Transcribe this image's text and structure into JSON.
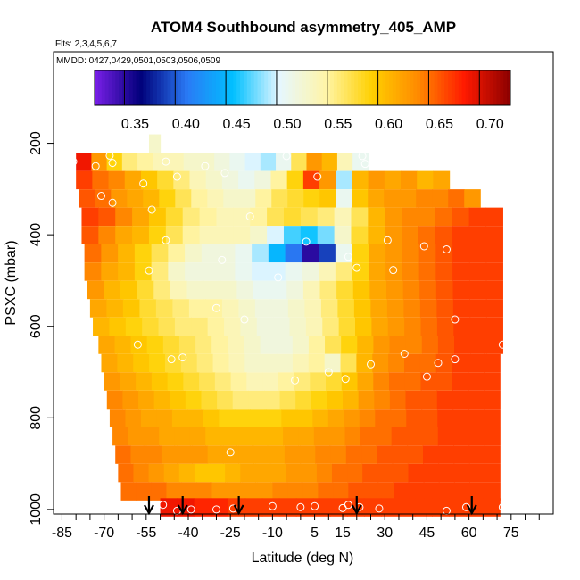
{
  "chart_data": {
    "type": "heatmap",
    "title": "ATOM4 Southbound asymmetry_405_AMP",
    "subtitle": "Flts: 2,3,4,5,6,7",
    "note": "MMDD: 0427,0429,0501,0503,0506,0509",
    "xlabel": "Latitude (deg N)",
    "ylabel": "PSXC (mbar)",
    "xlim": [
      -88,
      90
    ],
    "ylim": [
      1010,
      0
    ],
    "x_ticks": [
      -85,
      -70,
      -55,
      -40,
      -25,
      -10,
      5,
      15,
      30,
      45,
      60,
      75
    ],
    "x_tick_labels": [
      "-85",
      "-70",
      "-55",
      "-40",
      "-25",
      "-10",
      "5",
      "15",
      "30",
      "45",
      "60",
      "75"
    ],
    "y_ticks": [
      200,
      400,
      600,
      800,
      1000
    ],
    "y_tick_labels": [
      "200",
      "400",
      "600",
      "800",
      "1000"
    ],
    "colorbar": {
      "min": 0.31,
      "max": 0.72,
      "ticks": [
        0.35,
        0.4,
        0.45,
        0.5,
        0.55,
        0.6,
        0.65,
        0.7
      ],
      "tick_labels": [
        "0.35",
        "0.40",
        "0.45",
        "0.50",
        "0.55",
        "0.60",
        "0.65",
        "0.70"
      ],
      "colors": [
        "#7a1fe8",
        "#00007a",
        "#2a7af5",
        "#00c0ff",
        "#e6f7ff",
        "#fff5a8",
        "#ffd000",
        "#ff8a00",
        "#ff1a00",
        "#8b0000"
      ]
    },
    "profile_latitudes": [
      -54,
      -42,
      -22,
      20,
      61
    ],
    "bands": [
      {
        "p": 200,
        "x0": -54,
        "x1": -50,
        "values": [
          0.52,
          0.52
        ]
      },
      {
        "p": 240,
        "x0": -80,
        "x1": 24,
        "values": [
          0.68,
          0.62,
          0.58,
          0.55,
          0.54,
          0.53,
          0.53,
          0.52,
          0.52,
          0.51,
          0.5,
          0.49,
          0.48,
          0.5,
          0.56,
          0.62,
          0.6,
          0.53,
          0.5
        ]
      },
      {
        "p": 280,
        "x0": -80,
        "x1": 53,
        "values": [
          0.66,
          0.64,
          0.63,
          0.61,
          0.59,
          0.57,
          0.55,
          0.53,
          0.52,
          0.51,
          0.5,
          0.51,
          0.54,
          0.58,
          0.66,
          0.62,
          0.48,
          0.6,
          0.62,
          0.61,
          0.62,
          0.6,
          0.61
        ]
      },
      {
        "p": 320,
        "x0": -79,
        "x1": 64,
        "values": [
          0.65,
          0.64,
          0.62,
          0.61,
          0.6,
          0.58,
          0.56,
          0.54,
          0.53,
          0.52,
          0.52,
          0.54,
          0.56,
          0.57,
          0.58,
          0.59,
          0.5,
          0.59,
          0.61,
          0.62,
          0.62,
          0.63,
          0.63,
          0.64,
          0.62
        ]
      },
      {
        "p": 360,
        "x0": -78,
        "x1": 72,
        "values": [
          0.66,
          0.65,
          0.63,
          0.61,
          0.59,
          0.57,
          0.55,
          0.54,
          0.53,
          0.53,
          0.54,
          0.56,
          0.57,
          0.56,
          0.55,
          0.53,
          0.56,
          0.6,
          0.62,
          0.63,
          0.63,
          0.64,
          0.65,
          0.66,
          0.66
        ]
      },
      {
        "p": 400,
        "x0": -78,
        "x1": 72,
        "values": [
          0.65,
          0.63,
          0.61,
          0.6,
          0.58,
          0.56,
          0.54,
          0.53,
          0.53,
          0.53,
          0.52,
          0.49,
          0.46,
          0.45,
          0.47,
          0.52,
          0.57,
          0.6,
          0.62,
          0.63,
          0.64,
          0.65,
          0.66,
          0.66,
          0.66
        ]
      },
      {
        "p": 440,
        "x0": -77,
        "x1": 72,
        "values": [
          0.64,
          0.62,
          0.6,
          0.58,
          0.56,
          0.54,
          0.52,
          0.51,
          0.51,
          0.5,
          0.48,
          0.44,
          0.4,
          0.34,
          0.38,
          0.5,
          0.58,
          0.61,
          0.62,
          0.63,
          0.64,
          0.65,
          0.66,
          0.66,
          0.66
        ]
      },
      {
        "p": 480,
        "x0": -77,
        "x1": 72,
        "values": [
          0.63,
          0.61,
          0.6,
          0.58,
          0.55,
          0.52,
          0.51,
          0.51,
          0.51,
          0.5,
          0.49,
          0.49,
          0.5,
          0.51,
          0.53,
          0.55,
          0.58,
          0.61,
          0.62,
          0.63,
          0.64,
          0.65,
          0.66,
          0.66,
          0.66
        ]
      },
      {
        "p": 520,
        "x0": -76,
        "x1": 72,
        "values": [
          0.62,
          0.6,
          0.59,
          0.57,
          0.55,
          0.53,
          0.52,
          0.52,
          0.52,
          0.51,
          0.5,
          0.5,
          0.51,
          0.53,
          0.55,
          0.57,
          0.59,
          0.61,
          0.62,
          0.63,
          0.64,
          0.65,
          0.66,
          0.66,
          0.66
        ]
      },
      {
        "p": 560,
        "x0": -75,
        "x1": 72,
        "values": [
          0.61,
          0.6,
          0.59,
          0.57,
          0.56,
          0.55,
          0.54,
          0.54,
          0.53,
          0.52,
          0.51,
          0.51,
          0.52,
          0.53,
          0.55,
          0.57,
          0.59,
          0.61,
          0.62,
          0.63,
          0.64,
          0.65,
          0.66,
          0.66,
          0.66
        ]
      },
      {
        "p": 600,
        "x0": -74,
        "x1": 72,
        "values": [
          0.6,
          0.59,
          0.58,
          0.57,
          0.56,
          0.55,
          0.55,
          0.54,
          0.53,
          0.52,
          0.51,
          0.51,
          0.52,
          0.53,
          0.55,
          0.57,
          0.59,
          0.61,
          0.62,
          0.63,
          0.64,
          0.65,
          0.66,
          0.66,
          0.66
        ]
      },
      {
        "p": 640,
        "x0": -72,
        "x1": 72,
        "values": [
          0.61,
          0.6,
          0.59,
          0.58,
          0.57,
          0.56,
          0.55,
          0.54,
          0.53,
          0.52,
          0.51,
          0.51,
          0.52,
          0.54,
          0.56,
          0.58,
          0.6,
          0.62,
          0.63,
          0.63,
          0.64,
          0.65,
          0.66,
          0.66,
          0.66
        ]
      },
      {
        "p": 680,
        "x0": -71,
        "x1": 71,
        "values": [
          0.61,
          0.6,
          0.59,
          0.58,
          0.57,
          0.56,
          0.55,
          0.54,
          0.53,
          0.52,
          0.52,
          0.52,
          0.53,
          0.54,
          0.52,
          0.56,
          0.6,
          0.62,
          0.63,
          0.64,
          0.64,
          0.65,
          0.66,
          0.66,
          0.66
        ]
      },
      {
        "p": 720,
        "x0": -70,
        "x1": 71,
        "values": [
          0.62,
          0.61,
          0.6,
          0.59,
          0.58,
          0.57,
          0.56,
          0.55,
          0.54,
          0.53,
          0.53,
          0.54,
          0.55,
          0.56,
          0.57,
          0.59,
          0.61,
          0.63,
          0.64,
          0.64,
          0.65,
          0.65,
          0.66,
          0.66,
          0.66
        ]
      },
      {
        "p": 760,
        "x0": -69,
        "x1": 71,
        "values": [
          0.63,
          0.62,
          0.61,
          0.6,
          0.59,
          0.58,
          0.57,
          0.56,
          0.55,
          0.55,
          0.55,
          0.56,
          0.57,
          0.58,
          0.59,
          0.6,
          0.62,
          0.63,
          0.64,
          0.65,
          0.65,
          0.66,
          0.66,
          0.66,
          0.66
        ]
      },
      {
        "p": 800,
        "x0": -68,
        "x1": 71,
        "values": [
          0.63,
          0.62,
          0.61,
          0.61,
          0.6,
          0.6,
          0.59,
          0.58,
          0.58,
          0.58,
          0.58,
          0.59,
          0.59,
          0.6,
          0.61,
          0.62,
          0.63,
          0.64,
          0.64,
          0.65,
          0.65,
          0.66,
          0.66,
          0.66,
          0.66
        ]
      },
      {
        "p": 840,
        "x0": -67,
        "x1": 71,
        "values": [
          0.63,
          0.62,
          0.62,
          0.61,
          0.61,
          0.61,
          0.6,
          0.6,
          0.6,
          0.6,
          0.6,
          0.61,
          0.61,
          0.62,
          0.62,
          0.63,
          0.64,
          0.64,
          0.65,
          0.65,
          0.65,
          0.66,
          0.66,
          0.66,
          0.66
        ]
      },
      {
        "p": 880,
        "x0": -66,
        "x1": 71,
        "values": [
          0.64,
          0.63,
          0.63,
          0.62,
          0.62,
          0.62,
          0.61,
          0.61,
          0.61,
          0.61,
          0.61,
          0.62,
          0.62,
          0.63,
          0.63,
          0.64,
          0.64,
          0.65,
          0.65,
          0.65,
          0.66,
          0.66,
          0.66,
          0.66,
          0.66
        ]
      },
      {
        "p": 920,
        "x0": -65,
        "x1": 71,
        "values": [
          0.64,
          0.63,
          0.62,
          0.61,
          0.6,
          0.59,
          0.59,
          0.6,
          0.61,
          0.61,
          0.61,
          0.62,
          0.62,
          0.63,
          0.64,
          0.64,
          0.65,
          0.65,
          0.65,
          0.66,
          0.66,
          0.66,
          0.66,
          0.66,
          0.66
        ]
      },
      {
        "p": 960,
        "x0": -64,
        "x1": 71,
        "values": [
          0.64,
          0.64,
          0.64,
          0.63,
          0.63,
          0.63,
          0.62,
          0.62,
          0.62,
          0.62,
          0.63,
          0.63,
          0.63,
          0.64,
          0.64,
          0.65,
          0.65,
          0.65,
          0.66,
          0.66,
          0.66,
          0.66,
          0.66,
          0.66,
          0.66
        ]
      },
      {
        "p": 995,
        "x0": -50,
        "x1": 71,
        "values": [
          0.68,
          0.68,
          0.67,
          0.67,
          0.66,
          0.66,
          0.66,
          0.66,
          0.66,
          0.66,
          0.66,
          0.66,
          0.66,
          0.66,
          0.66,
          0.66,
          0.66,
          0.66,
          0.66,
          0.66
        ]
      }
    ],
    "points": [
      {
        "x": -81,
        "y": 240
      },
      {
        "x": -73,
        "y": 250
      },
      {
        "x": -68,
        "y": 227
      },
      {
        "x": -67,
        "y": 243
      },
      {
        "x": -56,
        "y": 288
      },
      {
        "x": -48,
        "y": 240
      },
      {
        "x": -44,
        "y": 273
      },
      {
        "x": -34,
        "y": 250
      },
      {
        "x": -27,
        "y": 265
      },
      {
        "x": -5,
        "y": 228
      },
      {
        "x": 6,
        "y": 273
      },
      {
        "x": 22,
        "y": 228
      },
      {
        "x": 23,
        "y": 245
      },
      {
        "x": 62,
        "y": 285
      },
      {
        "x": -71,
        "y": 315
      },
      {
        "x": -67,
        "y": 330
      },
      {
        "x": -53,
        "y": 345
      },
      {
        "x": -18,
        "y": 360
      },
      {
        "x": -48,
        "y": 412
      },
      {
        "x": 2,
        "y": 415
      },
      {
        "x": 17,
        "y": 448
      },
      {
        "x": 20,
        "y": 472
      },
      {
        "x": 31,
        "y": 412
      },
      {
        "x": 44,
        "y": 425
      },
      {
        "x": 52,
        "y": 432
      },
      {
        "x": 33,
        "y": 477
      },
      {
        "x": -54,
        "y": 478
      },
      {
        "x": -28,
        "y": 455
      },
      {
        "x": -8,
        "y": 493
      },
      {
        "x": -82,
        "y": 540
      },
      {
        "x": -30,
        "y": 560
      },
      {
        "x": -20,
        "y": 585
      },
      {
        "x": 55,
        "y": 585
      },
      {
        "x": -58,
        "y": 640
      },
      {
        "x": -46,
        "y": 672
      },
      {
        "x": -42,
        "y": 668
      },
      {
        "x": 10,
        "y": 700
      },
      {
        "x": 25,
        "y": 683
      },
      {
        "x": 37,
        "y": 660
      },
      {
        "x": 45,
        "y": 710
      },
      {
        "x": 49,
        "y": 680
      },
      {
        "x": 55,
        "y": 672
      },
      {
        "x": 72,
        "y": 640
      },
      {
        "x": -2,
        "y": 718
      },
      {
        "x": 16,
        "y": 715
      },
      {
        "x": -74,
        "y": 795
      },
      {
        "x": -25,
        "y": 875
      },
      {
        "x": 17,
        "y": 990
      },
      {
        "x": -49,
        "y": 990
      },
      {
        "x": -44,
        "y": 1003
      },
      {
        "x": -39,
        "y": 1000
      },
      {
        "x": -30,
        "y": 1000
      },
      {
        "x": -24,
        "y": 998
      },
      {
        "x": -10,
        "y": 993
      },
      {
        "x": 0,
        "y": 995
      },
      {
        "x": 5,
        "y": 993
      },
      {
        "x": 15,
        "y": 997
      },
      {
        "x": 21,
        "y": 995
      },
      {
        "x": 28,
        "y": 998
      },
      {
        "x": 52,
        "y": 1003
      },
      {
        "x": 59,
        "y": 995
      },
      {
        "x": 72,
        "y": 995
      }
    ]
  }
}
